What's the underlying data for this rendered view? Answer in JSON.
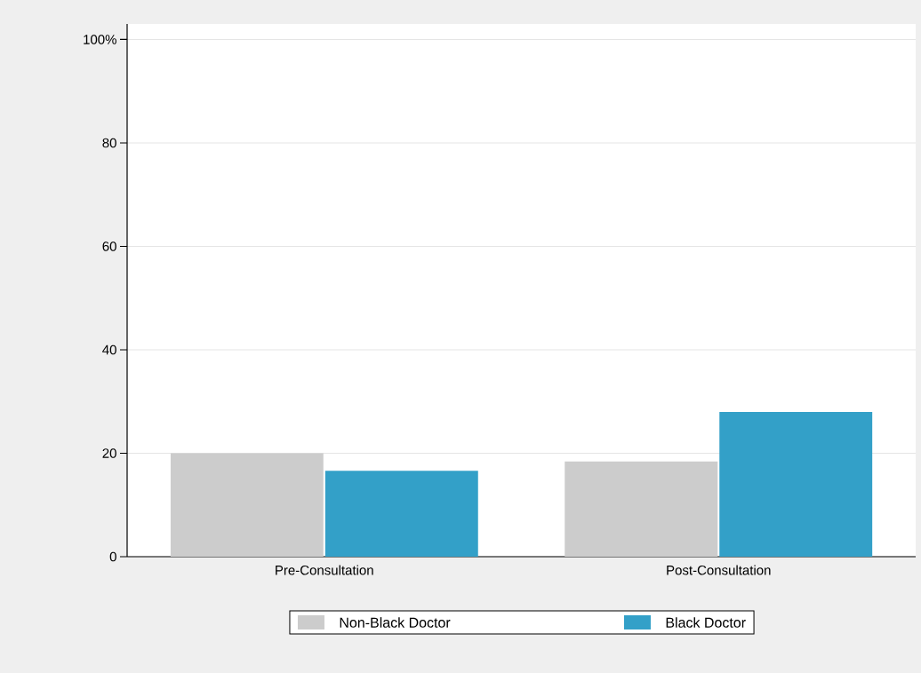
{
  "chart_data": {
    "type": "bar",
    "categories": [
      "Pre-Consultation",
      "Post-Consultation"
    ],
    "series": [
      {
        "name": "Non-Black Doctor",
        "color": "#cccccc",
        "values": [
          20,
          18.4
        ]
      },
      {
        "name": "Black Doctor",
        "color": "#33a0c8",
        "values": [
          16.6,
          28
        ]
      }
    ],
    "ylim": [
      0,
      103
    ],
    "yticks": [
      0,
      20,
      40,
      60,
      80,
      {
        "value": 100,
        "label": "100%"
      }
    ],
    "grid": "y",
    "legend": "bottom"
  }
}
